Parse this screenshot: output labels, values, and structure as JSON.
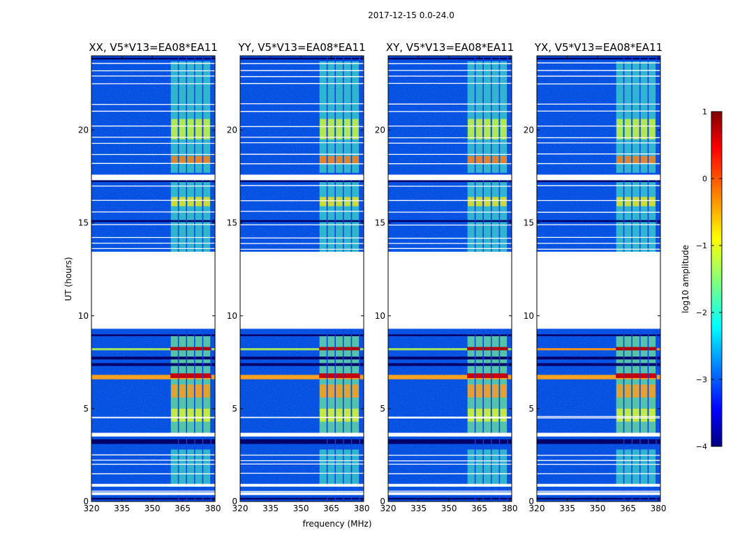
{
  "chart_data": {
    "type": "heatmap",
    "suptitle": "2017-12-15 0.0-24.0",
    "xlabel": "frequency (MHz)",
    "ylabel": "UT (hours)",
    "xlim": [
      320,
      381
    ],
    "ylim": [
      0,
      24
    ],
    "x_ticks": [
      320,
      335,
      350,
      365,
      380
    ],
    "y_ticks": [
      0,
      5,
      10,
      15,
      20
    ],
    "panels": [
      {
        "title": "XX, V5*V13=EA08*EA11"
      },
      {
        "title": "YY, V5*V13=EA08*EA11"
      },
      {
        "title": "XY, V5*V13=EA08*EA11"
      },
      {
        "title": "YX, V5*V13=EA08*EA11"
      }
    ],
    "no_data_ut_ranges": [
      [
        9.3,
        13.4
      ]
    ],
    "band_freqs_mhz": [
      [
        359,
        363
      ],
      [
        363,
        367
      ],
      [
        367,
        371
      ],
      [
        371,
        375
      ],
      [
        375,
        379
      ]
    ],
    "strong_rfi_ut_hours": [
      6.7,
      8.2
    ],
    "colorbar": {
      "label": "log10 amplitude",
      "range": [
        -4,
        1
      ],
      "ticks": [
        -4,
        -3,
        -2,
        -1,
        0,
        1
      ],
      "tick_labels": [
        "−4",
        "−3",
        "−2",
        "−1",
        "0",
        "1"
      ],
      "colormap": "jet"
    }
  }
}
